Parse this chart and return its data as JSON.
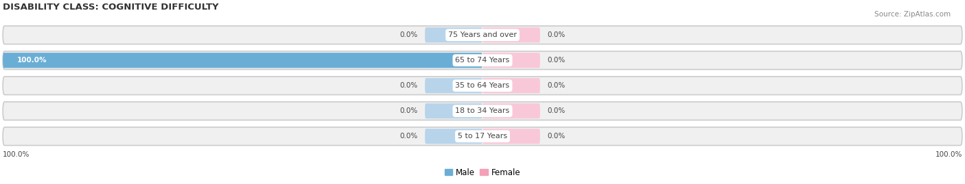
{
  "title": "DISABILITY CLASS: COGNITIVE DIFFICULTY",
  "source": "Source: ZipAtlas.com",
  "categories": [
    "5 to 17 Years",
    "18 to 34 Years",
    "35 to 64 Years",
    "65 to 74 Years",
    "75 Years and over"
  ],
  "male_values": [
    0.0,
    0.0,
    0.0,
    100.0,
    0.0
  ],
  "female_values": [
    0.0,
    0.0,
    0.0,
    0.0,
    0.0
  ],
  "male_color": "#6aaed6",
  "female_color": "#f4a0b8",
  "male_light_color": "#b8d4eb",
  "female_light_color": "#f9c8d8",
  "row_bg_color": "#e8e8e8",
  "row_inner_color": "#f5f5f5",
  "label_color": "#444444",
  "title_color": "#333333",
  "source_color": "#888888",
  "x_min": -100,
  "x_max": 100,
  "figsize": [
    14.06,
    2.69
  ],
  "dpi": 100
}
